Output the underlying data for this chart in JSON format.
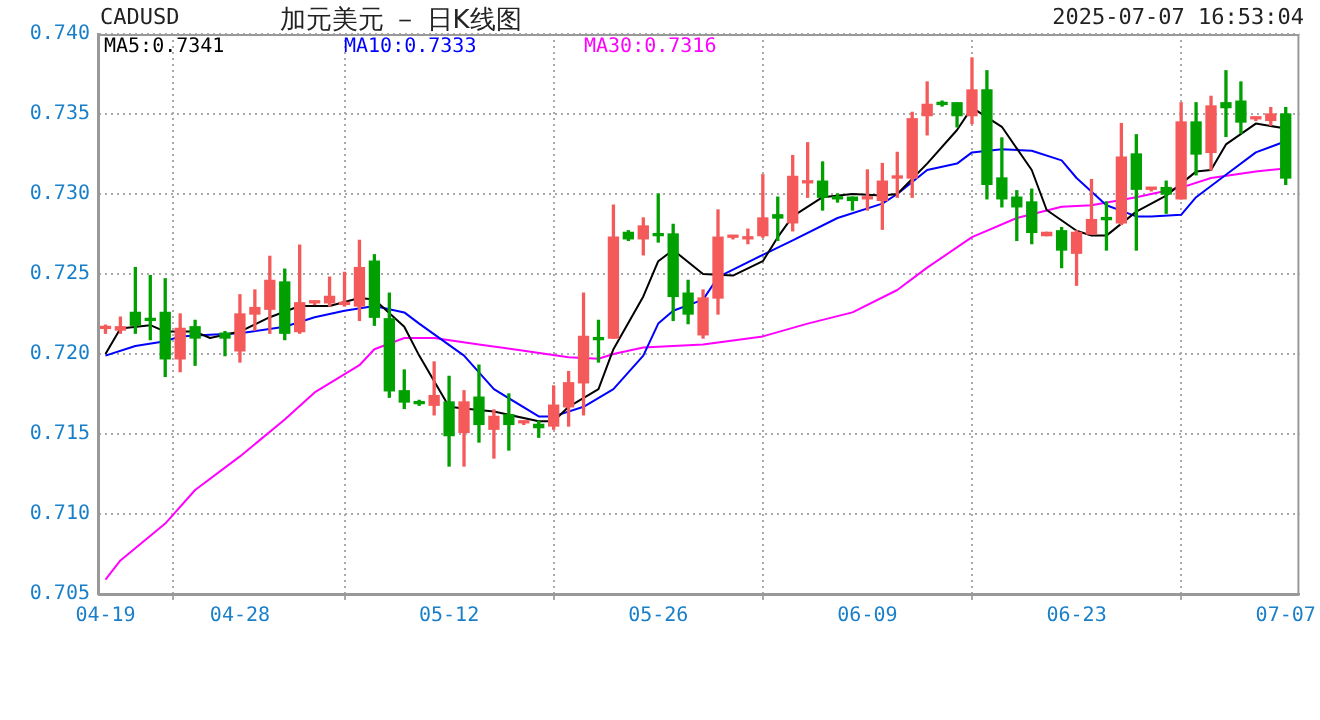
{
  "chart_data": {
    "type": "candlestick",
    "title": "加元美元 － 日K线图",
    "subtitle": "2025-07-07 16:53:04",
    "annotations": [
      "CADUSD"
    ],
    "x": [
      "2025-04-19",
      "2025-04-20",
      "2025-04-21",
      "2025-04-22",
      "2025-04-23",
      "2025-04-24",
      "2025-04-25",
      "2025-04-27",
      "2025-04-28",
      "2025-04-29",
      "2025-04-30",
      "2025-05-01",
      "2025-05-02",
      "2025-05-03",
      "2025-05-04",
      "2025-05-05",
      "2025-05-06",
      "2025-05-07",
      "2025-05-08",
      "2025-05-09",
      "2025-05-10",
      "2025-05-11",
      "2025-05-12",
      "2025-05-13",
      "2025-05-14",
      "2025-05-15",
      "2025-05-16",
      "2025-05-17",
      "2025-05-18",
      "2025-05-19",
      "2025-05-20",
      "2025-05-21",
      "2025-05-22",
      "2025-05-23",
      "2025-05-24",
      "2025-05-25",
      "2025-05-26",
      "2025-05-27",
      "2025-05-28",
      "2025-05-29",
      "2025-05-30",
      "2025-05-31",
      "2025-06-01",
      "2025-06-02",
      "2025-06-03",
      "2025-06-04",
      "2025-06-05",
      "2025-06-06",
      "2025-06-07",
      "2025-06-08",
      "2025-06-09",
      "2025-06-10",
      "2025-06-11",
      "2025-06-12",
      "2025-06-13",
      "2025-06-14",
      "2025-06-15",
      "2025-06-16",
      "2025-06-17",
      "2025-06-18",
      "2025-06-19",
      "2025-06-20",
      "2025-06-21",
      "2025-06-22",
      "2025-06-23",
      "2025-06-24",
      "2025-06-25",
      "2025-06-26",
      "2025-06-27",
      "2025-06-28",
      "2025-06-29",
      "2025-06-30",
      "2025-07-01",
      "2025-07-02",
      "2025-07-03",
      "2025-07-04",
      "2025-07-05",
      "2025-07-06",
      "2025-07-07"
    ],
    "ohlc": [
      [
        0.7216,
        0.7218,
        0.7213,
        0.7216
      ],
      [
        0.7215,
        0.7223,
        0.7213,
        0.7217
      ],
      [
        0.7226,
        0.7254,
        0.7213,
        0.7218
      ],
      [
        0.7222,
        0.7249,
        0.7209,
        0.7221
      ],
      [
        0.7226,
        0.7247,
        0.7186,
        0.7197
      ],
      [
        0.7197,
        0.7225,
        0.7189,
        0.7216
      ],
      [
        0.7217,
        0.7221,
        0.7193,
        0.721
      ],
      [
        0.7213,
        0.7214,
        0.7199,
        0.721
      ],
      [
        0.7202,
        0.7237,
        0.7195,
        0.7225
      ],
      [
        0.7225,
        0.724,
        0.7215,
        0.7229
      ],
      [
        0.7228,
        0.7261,
        0.7213,
        0.7246
      ],
      [
        0.7245,
        0.7253,
        0.7209,
        0.7213
      ],
      [
        0.7214,
        0.7268,
        0.7213,
        0.7232
      ],
      [
        0.7232,
        0.7233,
        0.7231,
        0.7233
      ],
      [
        0.7232,
        0.7248,
        0.723,
        0.7236
      ],
      [
        0.7231,
        0.7251,
        0.723,
        0.7232
      ],
      [
        0.723,
        0.7271,
        0.7221,
        0.7254
      ],
      [
        0.7258,
        0.7262,
        0.7218,
        0.7223
      ],
      [
        0.7222,
        0.7238,
        0.7173,
        0.7177
      ],
      [
        0.7177,
        0.719,
        0.7166,
        0.717
      ],
      [
        0.717,
        0.7171,
        0.7168,
        0.7169
      ],
      [
        0.7168,
        0.7195,
        0.7162,
        0.7174
      ],
      [
        0.717,
        0.7186,
        0.713,
        0.7149
      ],
      [
        0.7151,
        0.7177,
        0.713,
        0.717
      ],
      [
        0.7173,
        0.7193,
        0.7145,
        0.7156
      ],
      [
        0.7153,
        0.7165,
        0.7135,
        0.7161
      ],
      [
        0.7162,
        0.7175,
        0.714,
        0.7156
      ],
      [
        0.7157,
        0.7158,
        0.7156,
        0.7157
      ],
      [
        0.7156,
        0.7158,
        0.7148,
        0.7154
      ],
      [
        0.7155,
        0.718,
        0.7153,
        0.7168
      ],
      [
        0.7167,
        0.7189,
        0.7155,
        0.7182
      ],
      [
        0.7182,
        0.7238,
        0.7162,
        0.7211
      ],
      [
        0.721,
        0.7221,
        0.7195,
        0.7209
      ],
      [
        0.721,
        0.7293,
        0.721,
        0.7273
      ],
      [
        0.7276,
        0.7277,
        0.7271,
        0.7272
      ],
      [
        0.7272,
        0.7285,
        0.7262,
        0.728
      ],
      [
        0.7275,
        0.73,
        0.727,
        0.7274
      ],
      [
        0.7275,
        0.7281,
        0.7221,
        0.7236
      ],
      [
        0.7238,
        0.7246,
        0.7219,
        0.7225
      ],
      [
        0.7212,
        0.724,
        0.721,
        0.7235
      ],
      [
        0.7235,
        0.729,
        0.7225,
        0.7273
      ],
      [
        0.7273,
        0.7274,
        0.7272,
        0.7273
      ],
      [
        0.7272,
        0.7278,
        0.7269,
        0.7273
      ],
      [
        0.7274,
        0.7312,
        0.7273,
        0.7285
      ],
      [
        0.7287,
        0.7298,
        0.7271,
        0.7285
      ],
      [
        0.7282,
        0.7324,
        0.7277,
        0.7311
      ],
      [
        0.7307,
        0.7332,
        0.7298,
        0.7308
      ],
      [
        0.7308,
        0.732,
        0.729,
        0.7298
      ],
      [
        0.7298,
        0.73,
        0.7295,
        0.7297
      ],
      [
        0.7298,
        0.7298,
        0.729,
        0.7296
      ],
      [
        0.7297,
        0.7315,
        0.729,
        0.7297
      ],
      [
        0.7296,
        0.7319,
        0.7278,
        0.7308
      ],
      [
        0.731,
        0.7326,
        0.7298,
        0.731
      ],
      [
        0.731,
        0.7351,
        0.7298,
        0.7347
      ],
      [
        0.7349,
        0.737,
        0.7337,
        0.7356
      ],
      [
        0.7357,
        0.7358,
        0.7355,
        0.7356
      ],
      [
        0.7357,
        0.7357,
        0.7342,
        0.7349
      ],
      [
        0.7349,
        0.7385,
        0.7344,
        0.7365
      ],
      [
        0.7365,
        0.7377,
        0.7297,
        0.7306
      ],
      [
        0.731,
        0.7335,
        0.7292,
        0.7297
      ],
      [
        0.7298,
        0.7302,
        0.7271,
        0.7292
      ],
      [
        0.7295,
        0.7303,
        0.7269,
        0.7276
      ],
      [
        0.7274,
        0.7276,
        0.7274,
        0.7276
      ],
      [
        0.7277,
        0.7279,
        0.7254,
        0.7265
      ],
      [
        0.7263,
        0.7277,
        0.7243,
        0.7276
      ],
      [
        0.7275,
        0.7309,
        0.7275,
        0.7284
      ],
      [
        0.7285,
        0.7295,
        0.7265,
        0.7284
      ],
      [
        0.7282,
        0.7344,
        0.7281,
        0.7323
      ],
      [
        0.7325,
        0.7337,
        0.7265,
        0.7303
      ],
      [
        0.7303,
        0.7304,
        0.7302,
        0.7303
      ],
      [
        0.7304,
        0.7308,
        0.7288,
        0.73
      ],
      [
        0.7297,
        0.7357,
        0.7297,
        0.7345
      ],
      [
        0.7345,
        0.7357,
        0.7312,
        0.7325
      ],
      [
        0.7326,
        0.7361,
        0.7315,
        0.7355
      ],
      [
        0.7357,
        0.7377,
        0.7336,
        0.7354
      ],
      [
        0.7358,
        0.737,
        0.7338,
        0.7345
      ],
      [
        0.7347,
        0.7348,
        0.7346,
        0.7347
      ],
      [
        0.7346,
        0.7354,
        0.7343,
        0.735
      ],
      [
        0.735,
        0.7354,
        0.7306,
        0.731
      ]
    ],
    "colors": [
      "#f55a5a",
      "#f55a5a",
      "#00a000",
      "#00a000",
      "#00a000",
      "#f55a5a",
      "#00a000",
      "#00a000",
      "#f55a5a",
      "#f55a5a",
      "#f55a5a",
      "#00a000",
      "#f55a5a",
      "#f55a5a",
      "#f55a5a",
      "#f55a5a",
      "#f55a5a",
      "#00a000",
      "#00a000",
      "#00a000",
      "#00a000",
      "#f55a5a",
      "#00a000",
      "#f55a5a",
      "#00a000",
      "#f55a5a",
      "#00a000",
      "#f55a5a",
      "#00a000",
      "#f55a5a",
      "#f55a5a",
      "#f55a5a",
      "#00a000",
      "#f55a5a",
      "#00a000",
      "#f55a5a",
      "#00a000",
      "#00a000",
      "#00a000",
      "#f55a5a",
      "#f55a5a",
      "#f55a5a",
      "#f55a5a",
      "#f55a5a",
      "#00a000",
      "#f55a5a",
      "#f55a5a",
      "#00a000",
      "#00a000",
      "#00a000",
      "#f55a5a",
      "#f55a5a",
      "#f55a5a",
      "#f55a5a",
      "#f55a5a",
      "#00a000",
      "#00a000",
      "#f55a5a",
      "#00a000",
      "#00a000",
      "#00a000",
      "#00a000",
      "#f55a5a",
      "#00a000",
      "#f55a5a",
      "#f55a5a",
      "#00a000",
      "#f55a5a",
      "#00a000",
      "#f55a5a",
      "#00a000",
      "#f55a5a",
      "#00a000",
      "#f55a5a",
      "#00a000",
      "#00a000",
      "#f55a5a",
      "#f55a5a",
      "#00a000"
    ],
    "series": [
      {
        "type": "line",
        "name": "MA5:0.7341",
        "color": "#000000",
        "x": [
          "2025-04-19",
          "2025-04-20",
          "2025-04-22",
          "2025-04-23",
          "2025-04-25",
          "2025-04-26",
          "2025-04-28",
          "2025-04-30",
          "2025-05-02",
          "2025-05-04",
          "2025-05-06",
          "2025-05-07",
          "2025-05-09",
          "2025-05-10",
          "2025-05-12",
          "2025-05-13",
          "2025-05-15",
          "2025-05-18",
          "2025-05-19",
          "2025-05-20",
          "2025-05-22",
          "2025-05-23",
          "2025-05-25",
          "2025-05-26",
          "2025-05-27",
          "2025-05-29",
          "2025-05-31",
          "2025-06-02",
          "2025-06-03",
          "2025-06-04",
          "2025-06-06",
          "2025-06-08",
          "2025-06-10",
          "2025-06-11",
          "2025-06-13",
          "2025-06-15",
          "2025-06-16",
          "2025-06-18",
          "2025-06-20",
          "2025-06-21",
          "2025-06-23",
          "2025-06-24",
          "2025-06-25",
          "2025-06-27",
          "2025-06-29",
          "2025-07-01",
          "2025-07-02",
          "2025-07-03",
          "2025-07-05",
          "2025-07-07"
        ],
        "values": [
          0.72,
          0.7216,
          0.7218,
          0.7214,
          0.7214,
          0.721,
          0.7214,
          0.7223,
          0.723,
          0.723,
          0.7235,
          0.7234,
          0.7217,
          0.7199,
          0.7167,
          0.7166,
          0.7164,
          0.7158,
          0.7158,
          0.7167,
          0.7178,
          0.7203,
          0.7236,
          0.7258,
          0.7265,
          0.725,
          0.7249,
          0.7258,
          0.7273,
          0.7286,
          0.7298,
          0.73,
          0.7299,
          0.73,
          0.7319,
          0.734,
          0.7354,
          0.7342,
          0.7315,
          0.729,
          0.7277,
          0.7274,
          0.7274,
          0.7289,
          0.7299,
          0.7314,
          0.7315,
          0.7331,
          0.7344,
          0.7341
        ]
      },
      {
        "type": "line",
        "name": "MA10:0.7333",
        "color": "#0000ff",
        "x": [
          "2025-04-19",
          "2025-04-21",
          "2025-04-23",
          "2025-04-24",
          "2025-04-26",
          "2025-04-28",
          "2025-05-01",
          "2025-05-03",
          "2025-05-05",
          "2025-05-07",
          "2025-05-09",
          "2025-05-10",
          "2025-05-13",
          "2025-05-15",
          "2025-05-18",
          "2025-05-19",
          "2025-05-21",
          "2025-05-23",
          "2025-05-25",
          "2025-05-26",
          "2025-05-27",
          "2025-05-29",
          "2025-05-30",
          "2025-06-02",
          "2025-06-04",
          "2025-06-07",
          "2025-06-10",
          "2025-06-11",
          "2025-06-13",
          "2025-06-15",
          "2025-06-16",
          "2025-06-18",
          "2025-06-20",
          "2025-06-22",
          "2025-06-23",
          "2025-06-25",
          "2025-06-27",
          "2025-06-28",
          "2025-06-30",
          "2025-07-01",
          "2025-07-03",
          "2025-07-05",
          "2025-07-07"
        ],
        "values": [
          0.7199,
          0.7205,
          0.7208,
          0.7211,
          0.7212,
          0.7213,
          0.7217,
          0.7223,
          0.7227,
          0.723,
          0.7226,
          0.7219,
          0.7199,
          0.7178,
          0.7161,
          0.7161,
          0.7167,
          0.7178,
          0.7199,
          0.7219,
          0.7227,
          0.7234,
          0.7248,
          0.7262,
          0.7271,
          0.7285,
          0.7294,
          0.73,
          0.7315,
          0.7319,
          0.7326,
          0.7328,
          0.7327,
          0.7321,
          0.731,
          0.7293,
          0.7286,
          0.7286,
          0.7287,
          0.7298,
          0.7312,
          0.7326,
          0.7333
        ]
      },
      {
        "type": "line",
        "name": "MA30:0.7316",
        "color": "#ff00ff",
        "x": [
          "2025-04-19",
          "2025-04-20",
          "2025-04-23",
          "2025-04-25",
          "2025-04-28",
          "2025-05-01",
          "2025-05-03",
          "2025-05-06",
          "2025-05-07",
          "2025-05-09",
          "2025-05-11",
          "2025-05-14",
          "2025-05-17",
          "2025-05-20",
          "2025-05-22",
          "2025-05-23",
          "2025-05-25",
          "2025-05-29",
          "2025-06-02",
          "2025-06-05",
          "2025-06-08",
          "2025-06-11",
          "2025-06-13",
          "2025-06-16",
          "2025-06-19",
          "2025-06-22",
          "2025-06-24",
          "2025-06-27",
          "2025-06-30",
          "2025-07-02",
          "2025-07-05",
          "2025-07-07"
        ],
        "values": [
          0.7059,
          0.7071,
          0.7094,
          0.7115,
          0.7136,
          0.7159,
          0.7176,
          0.7193,
          0.7203,
          0.721,
          0.721,
          0.7206,
          0.7202,
          0.7198,
          0.7197,
          0.72,
          0.7204,
          0.7206,
          0.7211,
          0.7219,
          0.7226,
          0.724,
          0.7254,
          0.7273,
          0.7285,
          0.7292,
          0.7293,
          0.7298,
          0.7304,
          0.731,
          0.7314,
          0.7316
        ]
      }
    ],
    "xlim": [
      "2025-04-18T12:00",
      "2025-07-07T22:00"
    ],
    "xticks": [
      {
        "value": "2025-04-19",
        "label": "04-19"
      },
      {
        "value": "2025-04-28",
        "label": "04-28"
      },
      {
        "value": "2025-05-12",
        "label": "05-12"
      },
      {
        "value": "2025-05-26",
        "label": "05-26"
      },
      {
        "value": "2025-06-09",
        "label": "06-09"
      },
      {
        "value": "2025-06-23",
        "label": "06-23"
      },
      {
        "value": "2025-07-07",
        "label": "07-07"
      }
    ],
    "ylim": [
      0.705,
      0.74
    ],
    "yticks": [
      0.705,
      {
        "value": 0.71,
        "label": "0.710"
      },
      0.715,
      {
        "value": 0.72,
        "label": "0.720"
      },
      0.725,
      {
        "value": 0.73,
        "label": "0.730"
      },
      0.735,
      {
        "value": 0.74,
        "label": "0.740"
      }
    ],
    "grid": true,
    "legend": "top left"
  }
}
